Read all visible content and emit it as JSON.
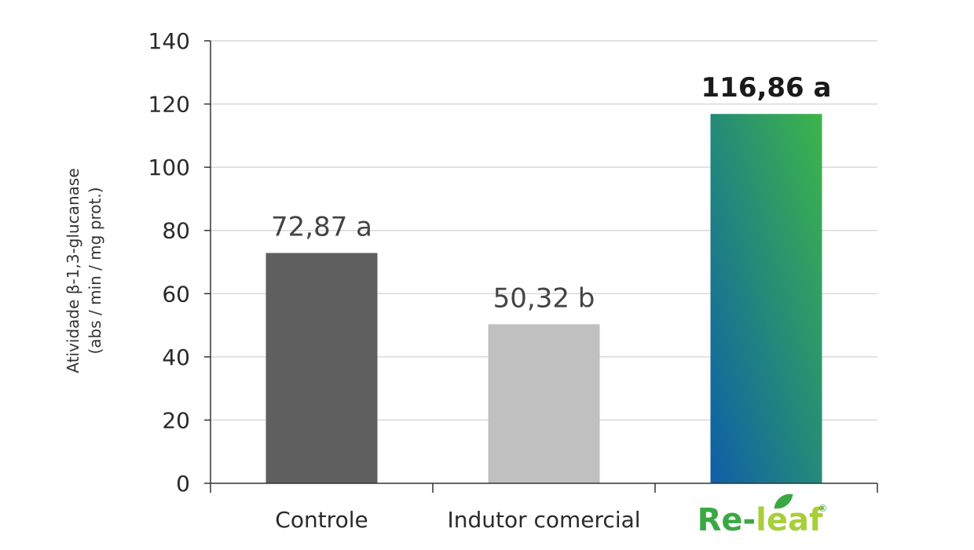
{
  "chart_data": {
    "type": "bar",
    "categories": [
      "Controle",
      "Indutor comercial",
      "Re-leaf"
    ],
    "values": [
      72.87,
      50.32,
      116.86
    ],
    "data_labels": [
      "72,87 a",
      "50,32 b",
      "116,86 a"
    ],
    "ylabel_line1": "Atividade β-1,3-glucanase",
    "ylabel_line2": "(abs / min / mg prot.)",
    "xlabel": "",
    "ylim": [
      0,
      140
    ],
    "yticks": [
      "0",
      "20",
      "40",
      "60",
      "80",
      "100",
      "120",
      "140"
    ],
    "grid": true,
    "bar_colors": [
      "#5f5f5f",
      "#c0c0c0",
      "gradient"
    ],
    "gradient_colors": [
      "#0d5fa8",
      "#3db54a"
    ],
    "logo": {
      "prefix": "Re-",
      "suffix": "leaf",
      "mark": "®",
      "prefix_color": "#3aa843",
      "suffix_color": "#a7cf3a",
      "leaf_color": "#3aa843"
    }
  }
}
